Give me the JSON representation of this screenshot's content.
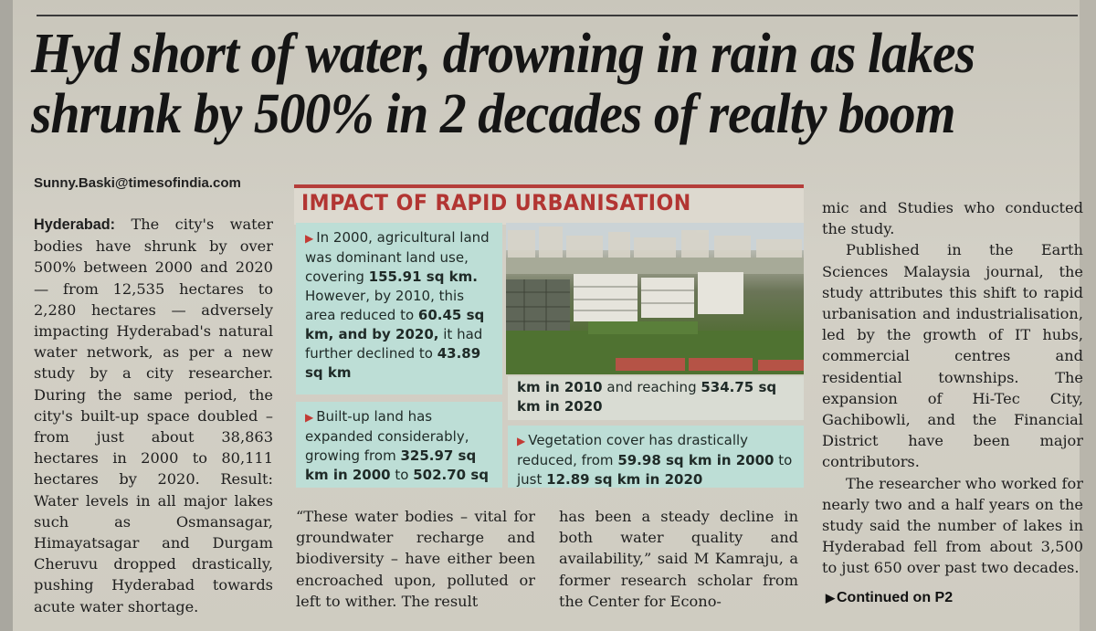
{
  "headline": "Hyd short of water, drowning in rain as lakes shrunk by 500% in 2 decades of realty boom",
  "byline": "Sunny.Baski@timesofindia.com",
  "infographic": {
    "title": "IMPACT OF RAPID URBANISATION",
    "tile_a": {
      "t1": "In 2000, agricultural land was dominant land use, covering ",
      "b1": "155.91 sq km.",
      "t2": " However, by 2010, this area reduced to ",
      "b2": "60.45 sq km, and by 2020,",
      "t3": " it had further declined to ",
      "b3": "43.89 sq km"
    },
    "tile_b": {
      "t1": "Built-up land has expanded considerably, growing from ",
      "b1": "325.97 sq km in 2000",
      "t2": " to ",
      "b2": "502.70 sq"
    },
    "tile_c": {
      "b1": "km in 2010",
      "t1": " and reaching ",
      "b2": "534.75 sq km in 2020"
    },
    "tile_d": {
      "t1": "Vegetation cover has drastically reduced, from ",
      "b1": "59.98 sq km in 2000",
      "t2": " to just ",
      "b2": "12.89 sq km in 2020"
    }
  },
  "article": {
    "dateline": "Hyderabad:",
    "col1": " The city's water bodies have shrunk by over 500% between 2000 and 2020 — from 12,535 hectares to 2,280 hectares — adversely impacting Hyderabad's natural water network, as per a new study by a city researcher. During the same period, the city's built-up space doubled – from just about 38,863 hectares in 2000 to 80,111 hectares by 2020. Result: Water levels in all major lakes such as Osmansagar, Himayatsagar and Durgam Cheruvu dropped drastically, pushing Hyderabad towards acute water shortage.",
    "col2": "“These water bodies – vital for groundwater recharge and biodiversity – have either been encroached upon, polluted or left to wither. The result",
    "col2b": "has been a steady decline in both water quality and availability,” said M Kamraju, a former research scholar from the Center for Econo-",
    "col3_p1": "mic and Studies who conducted the study.",
    "col3_p2": "Published in the Earth Sciences Malaysia journal, the study attributes this shift to rapid urbanisation and industrialisation, led by the growth of IT hubs, commercial centres and residential townships. The expansion of Hi-Tec City, Gachibowli, and the Financial District have been major contributors.",
    "col3_p3": "The researcher who worked for nearly two and a half years on the study said the number of lakes in Hyderabad fell from about 3,500 to just 650 over past two decades.",
    "continued": "Continued on P2"
  },
  "colors": {
    "accent_red": "#b23532",
    "tile_teal": "#bdded6",
    "paper": "#d3d0c6"
  }
}
